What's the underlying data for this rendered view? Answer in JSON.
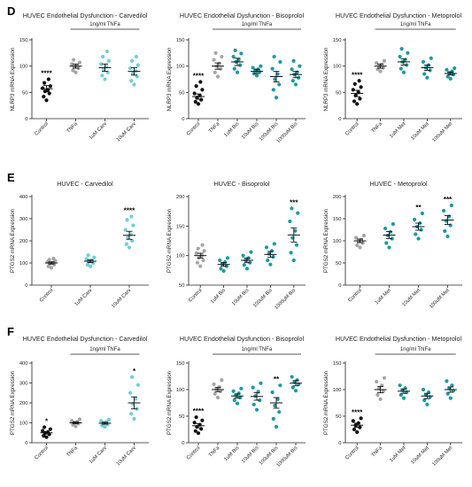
{
  "colors": {
    "black": "#111111",
    "gray": "#a6a6a6",
    "teal": "#1b9aa0",
    "lightteal": "#6fcfd6"
  },
  "sections": [
    {
      "letter": "D",
      "top": 6
    },
    {
      "letter": "E",
      "top": 194
    },
    {
      "letter": "F",
      "top": 368
    }
  ],
  "chart_data": [
    {
      "type": "scatter",
      "row": 0,
      "col": 0,
      "title": "HUVEC Endothelial Dysfunction - Carvedilol",
      "ylabel": "NLRP3 mRNA Expression",
      "ylim": [
        0,
        150
      ],
      "yticks": [
        0,
        50,
        100,
        150
      ],
      "treatment": "1ng/ml TNFa",
      "treatment_from": 1,
      "treatment_to": 3,
      "categories": [
        "Control",
        "TNFa",
        "1uM Carv",
        "10uM Carv"
      ],
      "series": [
        {
          "color": "black",
          "mean": 57,
          "sem": 6,
          "sig": "****",
          "points": [
            35,
            42,
            48,
            52,
            55,
            58,
            62,
            68,
            75
          ]
        },
        {
          "color": "gray",
          "mean": 100,
          "sem": 4,
          "sig": "",
          "points": [
            88,
            92,
            96,
            99,
            101,
            104,
            107,
            112
          ]
        },
        {
          "color": "lightteal",
          "mean": 97,
          "sem": 7,
          "sig": "",
          "points": [
            75,
            82,
            88,
            94,
            99,
            104,
            110,
            118,
            128
          ]
        },
        {
          "color": "lightteal",
          "mean": 90,
          "sem": 7,
          "sig": "",
          "points": [
            65,
            72,
            80,
            86,
            91,
            96,
            102,
            110,
            118
          ]
        }
      ]
    },
    {
      "type": "scatter",
      "row": 0,
      "col": 1,
      "title": "HUVEC Endothelial Dysfunction - Bisoprolol",
      "ylabel": "NLRP3 mRNA Expression",
      "ylim": [
        0,
        150
      ],
      "yticks": [
        0,
        50,
        100,
        150
      ],
      "treatment": "1ng/ml TNFa",
      "treatment_from": 1,
      "treatment_to": 5,
      "categories": [
        "Control",
        "TNFa",
        "1uM Bis",
        "10uM Bis",
        "100uM Bis",
        "1000uM Bis"
      ],
      "series": [
        {
          "color": "black",
          "mean": 42,
          "sem": 5,
          "sig": "****",
          "points": [
            28,
            32,
            36,
            40,
            44,
            48,
            55,
            62,
            70
          ]
        },
        {
          "color": "gray",
          "mean": 100,
          "sem": 6,
          "sig": "",
          "points": [
            80,
            88,
            95,
            100,
            105,
            112,
            118,
            125
          ]
        },
        {
          "color": "teal",
          "mean": 108,
          "sem": 7,
          "sig": "",
          "points": [
            88,
            95,
            102,
            108,
            112,
            118,
            124,
            130
          ]
        },
        {
          "color": "teal",
          "mean": 90,
          "sem": 4,
          "sig": "",
          "points": [
            82,
            86,
            89,
            92,
            94,
            97,
            100
          ]
        },
        {
          "color": "teal",
          "mean": 80,
          "sem": 10,
          "sig": "",
          "points": [
            40,
            55,
            65,
            75,
            85,
            95,
            108,
            118
          ]
        },
        {
          "color": "teal",
          "mean": 84,
          "sem": 6,
          "sig": "",
          "points": [
            65,
            72,
            78,
            84,
            88,
            94,
            100,
            110
          ]
        }
      ]
    },
    {
      "type": "scatter",
      "row": 0,
      "col": 2,
      "title": "HUVEC Endothelial Dysfunction - Metoprolol",
      "ylabel": "NLRP3 mRNA Expression",
      "ylim": [
        0,
        150
      ],
      "yticks": [
        0,
        50,
        100,
        150
      ],
      "treatment": "1ng/ml TNFa",
      "treatment_from": 1,
      "treatment_to": 4,
      "categories": [
        "Control",
        "TNFa",
        "1uM Met",
        "10uM Met",
        "100uM Met"
      ],
      "series": [
        {
          "color": "black",
          "mean": 48,
          "sem": 6,
          "sig": "****",
          "points": [
            28,
            33,
            38,
            44,
            50,
            55,
            60,
            66,
            72
          ]
        },
        {
          "color": "gray",
          "mean": 100,
          "sem": 4,
          "sig": "",
          "points": [
            90,
            94,
            97,
            100,
            103,
            106,
            110
          ]
        },
        {
          "color": "teal",
          "mean": 108,
          "sem": 6,
          "sig": "",
          "points": [
            88,
            95,
            102,
            108,
            112,
            118,
            125,
            133
          ]
        },
        {
          "color": "teal",
          "mean": 97,
          "sem": 5,
          "sig": "",
          "points": [
            78,
            85,
            92,
            97,
            102,
            108,
            115
          ]
        },
        {
          "color": "teal",
          "mean": 86,
          "sem": 3,
          "sig": "",
          "points": [
            76,
            80,
            84,
            87,
            90,
            93,
            96
          ]
        }
      ]
    },
    {
      "type": "scatter",
      "row": 1,
      "col": 0,
      "title": "HUVEC - Carvedilol",
      "ylabel": "PTGS2 mRNA Expression",
      "ylim": [
        0,
        400
      ],
      "yticks": [
        0,
        100,
        200,
        300,
        400
      ],
      "treatment": "",
      "treatment_from": 0,
      "treatment_to": 0,
      "categories": [
        "Control",
        "1uM Carv",
        "10uM Carv"
      ],
      "series": [
        {
          "color": "gray",
          "mean": 100,
          "sem": 5,
          "sig": "",
          "points": [
            78,
            85,
            92,
            97,
            101,
            105,
            110,
            115,
            120
          ]
        },
        {
          "color": "lightteal",
          "mean": 108,
          "sem": 6,
          "sig": "",
          "points": [
            85,
            92,
            100,
            106,
            112,
            118,
            125,
            135
          ]
        },
        {
          "color": "lightteal",
          "mean": 225,
          "sem": 18,
          "sig": "****",
          "points": [
            170,
            185,
            200,
            215,
            230,
            250,
            270,
            295,
            310
          ]
        }
      ]
    },
    {
      "type": "scatter",
      "row": 1,
      "col": 1,
      "title": "HUVEC - Bisoprolol",
      "ylabel": "PTGS2 mRNA Expression",
      "ylim": [
        50,
        200
      ],
      "yticks": [
        50,
        100,
        150,
        200
      ],
      "treatment": "",
      "treatment_from": 0,
      "treatment_to": 0,
      "categories": [
        "Control",
        "1uM Bis",
        "10uM Bis",
        "100uM Bis",
        "1000uM Bis"
      ],
      "series": [
        {
          "color": "gray",
          "mean": 100,
          "sem": 4,
          "sig": "",
          "points": [
            82,
            88,
            92,
            96,
            100,
            104,
            108,
            112,
            118
          ]
        },
        {
          "color": "teal",
          "mean": 85,
          "sem": 3,
          "sig": "",
          "points": [
            74,
            78,
            82,
            86,
            89,
            92,
            96
          ]
        },
        {
          "color": "teal",
          "mean": 92,
          "sem": 4,
          "sig": "",
          "points": [
            78,
            84,
            88,
            92,
            96,
            100,
            106
          ]
        },
        {
          "color": "teal",
          "mean": 102,
          "sem": 5,
          "sig": "",
          "points": [
            85,
            92,
            98,
            103,
            108,
            114,
            120
          ]
        },
        {
          "color": "teal",
          "mean": 135,
          "sem": 12,
          "sig": "***",
          "points": [
            92,
            105,
            118,
            130,
            142,
            158,
            172,
            180
          ]
        }
      ]
    },
    {
      "type": "scatter",
      "row": 1,
      "col": 2,
      "title": "HUVEC - Metoprolol",
      "ylabel": "PTGS2 mRNA Expression",
      "ylim": [
        0,
        200
      ],
      "yticks": [
        0,
        50,
        100,
        150,
        200
      ],
      "treatment": "",
      "treatment_from": 0,
      "treatment_to": 0,
      "categories": [
        "Control",
        "1uM Met",
        "10uM Met",
        "100uM Met"
      ],
      "series": [
        {
          "color": "gray",
          "mean": 100,
          "sem": 4,
          "sig": "",
          "points": [
            85,
            90,
            95,
            99,
            103,
            107,
            112
          ]
        },
        {
          "color": "teal",
          "mean": 113,
          "sem": 8,
          "sig": "",
          "points": [
            85,
            95,
            105,
            112,
            120,
            128,
            138
          ]
        },
        {
          "color": "teal",
          "mean": 132,
          "sem": 8,
          "sig": "**",
          "points": [
            105,
            115,
            125,
            132,
            140,
            148,
            162
          ]
        },
        {
          "color": "teal",
          "mean": 147,
          "sem": 10,
          "sig": "***",
          "points": [
            110,
            122,
            135,
            145,
            155,
            168,
            180
          ]
        }
      ]
    },
    {
      "type": "scatter",
      "row": 2,
      "col": 0,
      "title": "HUVEC Endothelial Dysfunction - Carvedilol",
      "ylabel": "PTGS2 mRNA Expression",
      "ylim": [
        0,
        400
      ],
      "yticks": [
        0,
        100,
        200,
        300,
        400
      ],
      "treatment": "1ng/ml TNFa",
      "treatment_from": 1,
      "treatment_to": 3,
      "categories": [
        "Control",
        "TNFa",
        "1uM Carv",
        "10uM Carv"
      ],
      "series": [
        {
          "color": "black",
          "mean": 50,
          "sem": 6,
          "sig": "*",
          "points": [
            28,
            35,
            42,
            48,
            54,
            60,
            68,
            78
          ]
        },
        {
          "color": "gray",
          "mean": 100,
          "sem": 5,
          "sig": "",
          "points": [
            82,
            90,
            96,
            100,
            105,
            110,
            118
          ]
        },
        {
          "color": "lightteal",
          "mean": 98,
          "sem": 5,
          "sig": "",
          "points": [
            80,
            86,
            92,
            98,
            104,
            110,
            116
          ]
        },
        {
          "color": "lightteal",
          "mean": 200,
          "sem": 30,
          "sig": "*",
          "points": [
            120,
            145,
            170,
            195,
            220,
            250,
            290,
            330
          ]
        }
      ]
    },
    {
      "type": "scatter",
      "row": 2,
      "col": 1,
      "title": "HUVEC Endothelial Dysfunction - Bisoprolol",
      "ylabel": "PTGS2 mRNA Expression",
      "ylim": [
        0,
        150
      ],
      "yticks": [
        0,
        50,
        100,
        150
      ],
      "treatment": "1ng/ml TNFa",
      "treatment_from": 1,
      "treatment_to": 5,
      "categories": [
        "Control",
        "TNFa",
        "1uM Bis",
        "10uM Bis",
        "100uM Bis",
        "1000uM Bis"
      ],
      "series": [
        {
          "color": "black",
          "mean": 32,
          "sem": 4,
          "sig": "****",
          "points": [
            18,
            22,
            26,
            30,
            34,
            38,
            42,
            48
          ]
        },
        {
          "color": "gray",
          "mean": 100,
          "sem": 4,
          "sig": "",
          "points": [
            85,
            92,
            97,
            101,
            105,
            110,
            118
          ]
        },
        {
          "color": "teal",
          "mean": 88,
          "sem": 4,
          "sig": "",
          "points": [
            74,
            80,
            85,
            89,
            93,
            97,
            102
          ]
        },
        {
          "color": "teal",
          "mean": 87,
          "sem": 7,
          "sig": "",
          "points": [
            62,
            72,
            80,
            88,
            96,
            104,
            112
          ]
        },
        {
          "color": "teal",
          "mean": 75,
          "sem": 10,
          "sig": "**",
          "points": [
            30,
            45,
            58,
            70,
            82,
            95,
            108
          ]
        },
        {
          "color": "teal",
          "mean": 112,
          "sem": 5,
          "sig": "",
          "points": [
            98,
            104,
            110,
            114,
            118,
            124
          ]
        }
      ]
    },
    {
      "type": "scatter",
      "row": 2,
      "col": 2,
      "title": "HUVEC Endothelial Dysfunction - Metoprolol",
      "ylabel": "PTGS2 mRNA Expression",
      "ylim": [
        0,
        150
      ],
      "yticks": [
        0,
        50,
        100,
        150
      ],
      "treatment": "1ng/ml TNFa",
      "treatment_from": 1,
      "treatment_to": 4,
      "categories": [
        "Control",
        "TNFa",
        "1uM Met",
        "10uM Met",
        "100uM Met"
      ],
      "series": [
        {
          "color": "black",
          "mean": 33,
          "sem": 4,
          "sig": "****",
          "points": [
            20,
            25,
            29,
            33,
            37,
            41,
            46
          ]
        },
        {
          "color": "gray",
          "mean": 100,
          "sem": 6,
          "sig": "",
          "points": [
            82,
            90,
            97,
            102,
            108,
            115,
            122
          ]
        },
        {
          "color": "teal",
          "mean": 97,
          "sem": 4,
          "sig": "",
          "points": [
            84,
            90,
            95,
            99,
            103,
            108
          ]
        },
        {
          "color": "teal",
          "mean": 88,
          "sem": 5,
          "sig": "",
          "points": [
            72,
            80,
            86,
            90,
            95,
            100
          ]
        },
        {
          "color": "teal",
          "mean": 100,
          "sem": 5,
          "sig": "",
          "points": [
            84,
            92,
            98,
            102,
            108,
            116
          ]
        }
      ]
    }
  ]
}
